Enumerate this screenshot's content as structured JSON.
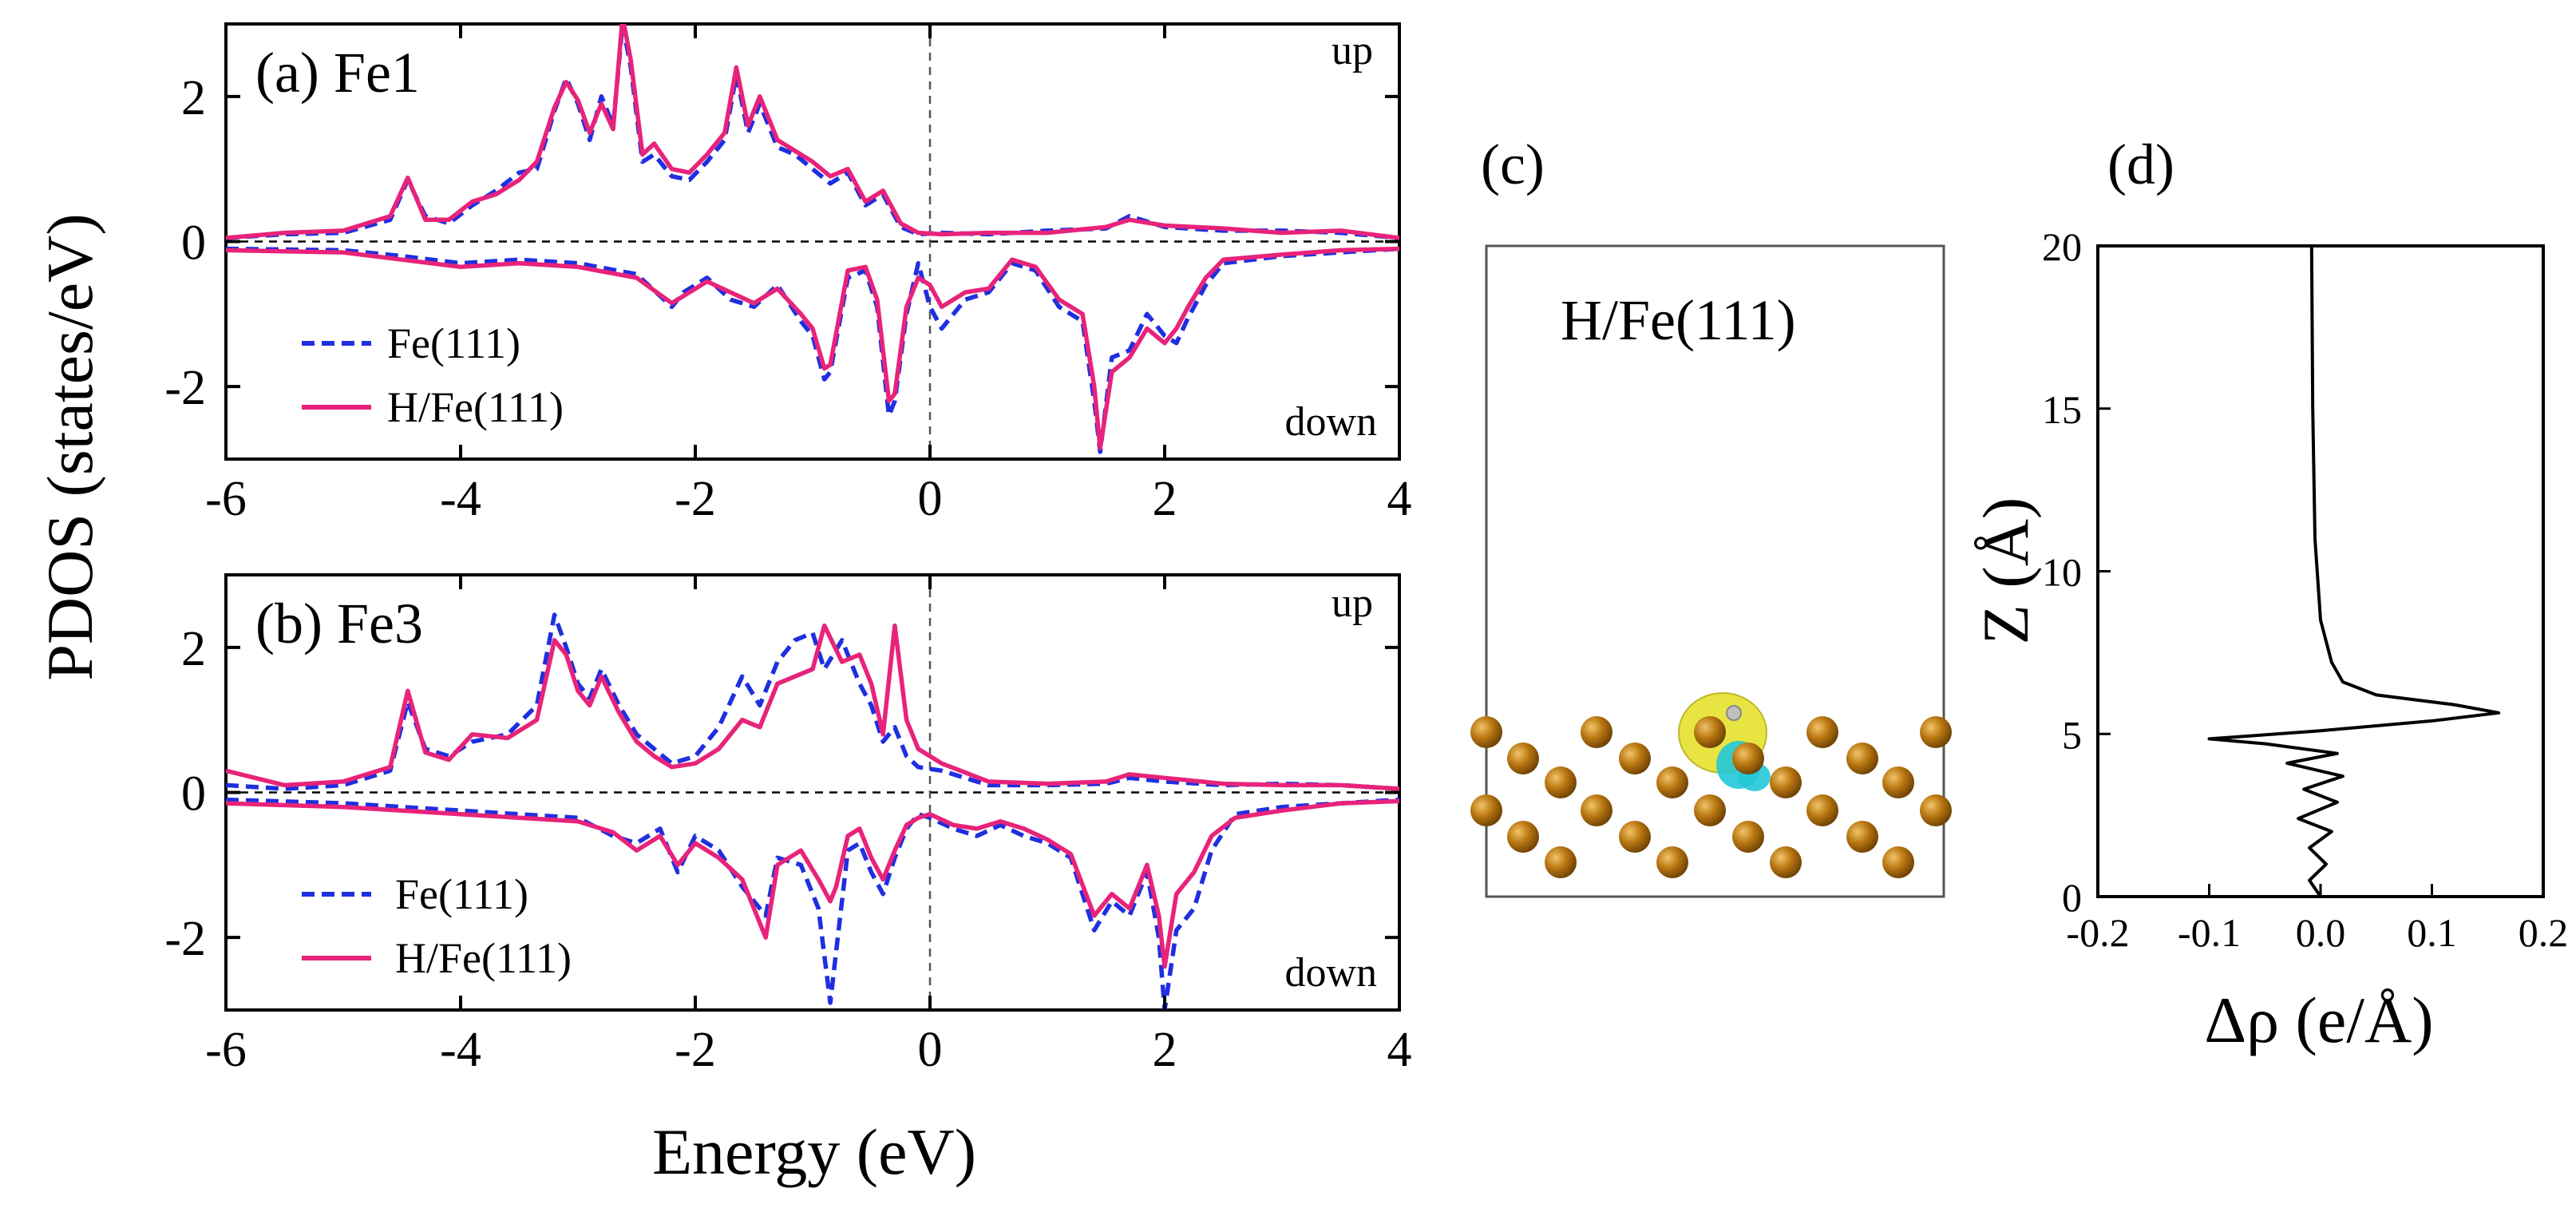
{
  "colors": {
    "fe111": "#1f2fe0",
    "hfe111": "#e8237a",
    "axis": "#000000",
    "atom": "#b8760f",
    "iso_pos": "#e6e22e",
    "iso_neg": "#22c8d8"
  },
  "shared_labels": {
    "ylabel": "PDOS (states/eV)",
    "xlabel": "Energy (eV)"
  },
  "panel_c": {
    "label": "(c)",
    "title": "H/Fe(111)"
  },
  "chart_data": [
    {
      "type": "line",
      "id": "a",
      "title": "(a) Fe1",
      "spin_labels": {
        "up": "up",
        "down": "down"
      },
      "xlim": [
        -6,
        4
      ],
      "ylim": [
        -3,
        3
      ],
      "xticks": [
        -6,
        -4,
        -2,
        0,
        2,
        4
      ],
      "yticks": [
        -2,
        0,
        2
      ],
      "xtick_labels": [
        "-6",
        "-4",
        "-2",
        "0",
        "2",
        "4"
      ],
      "ytick_labels": [
        "-2",
        "0",
        "2"
      ],
      "legend": [
        "Fe(111)",
        "H/Fe(111)"
      ],
      "series": [
        {
          "name": "Fe(111) up",
          "style": "dashed",
          "color_key": "fe111",
          "x": [
            -6,
            -5.5,
            -5,
            -4.6,
            -4.45,
            -4.3,
            -4.1,
            -3.9,
            -3.7,
            -3.5,
            -3.35,
            -3.2,
            -3.1,
            -3.0,
            -2.9,
            -2.8,
            -2.7,
            -2.62,
            -2.55,
            -2.45,
            -2.35,
            -2.2,
            -2.05,
            -1.9,
            -1.75,
            -1.65,
            -1.55,
            -1.45,
            -1.3,
            -1.15,
            -1.0,
            -0.85,
            -0.7,
            -0.55,
            -0.4,
            -0.25,
            -0.1,
            0.1,
            0.5,
            1.0,
            1.5,
            1.7,
            2.0,
            2.5,
            3.0,
            3.5,
            4.0
          ],
          "y": [
            0.05,
            0.1,
            0.12,
            0.3,
            0.85,
            0.35,
            0.25,
            0.5,
            0.7,
            0.95,
            1.0,
            1.8,
            2.25,
            1.9,
            1.4,
            2.0,
            1.6,
            3.0,
            2.4,
            1.1,
            1.2,
            0.9,
            0.85,
            1.1,
            1.4,
            2.3,
            1.5,
            1.9,
            1.3,
            1.2,
            1.0,
            0.8,
            0.95,
            0.5,
            0.65,
            0.2,
            0.1,
            0.12,
            0.1,
            0.15,
            0.18,
            0.35,
            0.2,
            0.15,
            0.15,
            0.12,
            0.05
          ]
        },
        {
          "name": "H/Fe(111) up",
          "style": "solid",
          "color_key": "hfe111",
          "x": [
            -6,
            -5.5,
            -5,
            -4.6,
            -4.45,
            -4.3,
            -4.1,
            -3.9,
            -3.7,
            -3.5,
            -3.35,
            -3.2,
            -3.1,
            -3.0,
            -2.9,
            -2.8,
            -2.7,
            -2.62,
            -2.55,
            -2.45,
            -2.35,
            -2.2,
            -2.05,
            -1.9,
            -1.75,
            -1.65,
            -1.55,
            -1.45,
            -1.3,
            -1.15,
            -1.0,
            -0.85,
            -0.7,
            -0.55,
            -0.4,
            -0.25,
            -0.1,
            0.1,
            0.5,
            1.0,
            1.5,
            1.7,
            2.0,
            2.5,
            3.0,
            3.5,
            4.0
          ],
          "y": [
            0.05,
            0.12,
            0.15,
            0.35,
            0.88,
            0.3,
            0.3,
            0.55,
            0.65,
            0.85,
            1.1,
            1.85,
            2.2,
            1.95,
            1.5,
            1.9,
            1.55,
            3.1,
            2.5,
            1.2,
            1.35,
            1.0,
            0.95,
            1.2,
            1.5,
            2.4,
            1.6,
            2.0,
            1.4,
            1.25,
            1.1,
            0.9,
            1.0,
            0.55,
            0.7,
            0.25,
            0.12,
            0.1,
            0.12,
            0.12,
            0.2,
            0.3,
            0.22,
            0.18,
            0.12,
            0.15,
            0.05
          ]
        },
        {
          "name": "Fe(111) down",
          "style": "dashed",
          "color_key": "fe111",
          "x": [
            -6,
            -5,
            -4.5,
            -4.0,
            -3.5,
            -3.0,
            -2.5,
            -2.2,
            -2.1,
            -1.9,
            -1.7,
            -1.5,
            -1.3,
            -1.1,
            -1.0,
            -0.9,
            -0.85,
            -0.7,
            -0.55,
            -0.45,
            -0.35,
            -0.3,
            -0.2,
            -0.1,
            0.0,
            0.1,
            0.3,
            0.5,
            0.7,
            0.9,
            1.1,
            1.3,
            1.4,
            1.45,
            1.55,
            1.7,
            1.85,
            2.0,
            2.1,
            2.2,
            2.35,
            2.5,
            3.0,
            3.5,
            4.0
          ],
          "y": [
            -0.1,
            -0.12,
            -0.2,
            -0.3,
            -0.25,
            -0.3,
            -0.45,
            -0.9,
            -0.7,
            -0.5,
            -0.8,
            -0.9,
            -0.6,
            -1.1,
            -1.3,
            -1.9,
            -1.8,
            -0.5,
            -0.4,
            -0.9,
            -2.4,
            -2.2,
            -1.0,
            -0.3,
            -0.9,
            -1.2,
            -0.8,
            -0.7,
            -0.3,
            -0.4,
            -0.9,
            -1.1,
            -2.2,
            -2.9,
            -1.6,
            -1.5,
            -1.0,
            -1.3,
            -1.4,
            -1.05,
            -0.6,
            -0.3,
            -0.2,
            -0.15,
            -0.1
          ]
        },
        {
          "name": "H/Fe(111) down",
          "style": "solid",
          "color_key": "hfe111",
          "x": [
            -6,
            -5,
            -4.5,
            -4.0,
            -3.5,
            -3.0,
            -2.5,
            -2.2,
            -2.1,
            -1.9,
            -1.7,
            -1.5,
            -1.3,
            -1.1,
            -1.0,
            -0.9,
            -0.85,
            -0.7,
            -0.55,
            -0.45,
            -0.35,
            -0.3,
            -0.2,
            -0.1,
            0.0,
            0.1,
            0.3,
            0.5,
            0.7,
            0.9,
            1.1,
            1.3,
            1.4,
            1.45,
            1.55,
            1.7,
            1.85,
            2.0,
            2.1,
            2.2,
            2.35,
            2.5,
            3.0,
            3.5,
            4.0
          ],
          "y": [
            -0.12,
            -0.15,
            -0.25,
            -0.35,
            -0.3,
            -0.35,
            -0.5,
            -0.85,
            -0.75,
            -0.55,
            -0.7,
            -0.85,
            -0.65,
            -1.0,
            -1.2,
            -1.75,
            -1.7,
            -0.4,
            -0.35,
            -0.8,
            -2.2,
            -2.1,
            -0.9,
            -0.5,
            -0.6,
            -0.9,
            -0.7,
            -0.65,
            -0.25,
            -0.35,
            -0.8,
            -1.0,
            -2.0,
            -2.85,
            -1.8,
            -1.6,
            -1.2,
            -1.4,
            -1.2,
            -0.9,
            -0.5,
            -0.25,
            -0.18,
            -0.12,
            -0.1
          ]
        }
      ]
    },
    {
      "type": "line",
      "id": "b",
      "title": "(b) Fe3",
      "spin_labels": {
        "up": "up",
        "down": "down"
      },
      "xlim": [
        -6,
        4
      ],
      "ylim": [
        -3,
        3
      ],
      "xticks": [
        -6,
        -4,
        -2,
        0,
        2,
        4
      ],
      "yticks": [
        -2,
        0,
        2
      ],
      "xtick_labels": [
        "-6",
        "-4",
        "-2",
        "0",
        "2",
        "4"
      ],
      "ytick_labels": [
        "-2",
        "0",
        "2"
      ],
      "legend": [
        "Fe(111)",
        "H/Fe(111)"
      ],
      "series": [
        {
          "name": "Fe(111) up",
          "style": "dashed",
          "color_key": "fe111",
          "x": [
            -6,
            -5.5,
            -5,
            -4.6,
            -4.45,
            -4.3,
            -4.1,
            -3.9,
            -3.6,
            -3.35,
            -3.2,
            -3.1,
            -3.0,
            -2.9,
            -2.8,
            -2.65,
            -2.5,
            -2.35,
            -2.2,
            -2.0,
            -1.8,
            -1.6,
            -1.45,
            -1.3,
            -1.15,
            -1.0,
            -0.9,
            -0.75,
            -0.6,
            -0.5,
            -0.4,
            -0.3,
            -0.2,
            -0.1,
            0.1,
            0.5,
            1.0,
            1.5,
            1.7,
            2.0,
            2.5,
            3.0,
            3.5,
            4.0
          ],
          "y": [
            0.1,
            0.05,
            0.1,
            0.3,
            1.25,
            0.6,
            0.5,
            0.7,
            0.8,
            1.2,
            2.45,
            2.0,
            1.5,
            1.3,
            1.7,
            1.2,
            0.8,
            0.6,
            0.4,
            0.5,
            0.9,
            1.6,
            1.2,
            1.8,
            2.1,
            2.2,
            1.7,
            2.1,
            1.5,
            1.2,
            0.7,
            0.9,
            0.5,
            0.35,
            0.3,
            0.1,
            0.1,
            0.12,
            0.2,
            0.15,
            0.1,
            0.12,
            0.1,
            0.05
          ]
        },
        {
          "name": "H/Fe(111) up",
          "style": "solid",
          "color_key": "hfe111",
          "x": [
            -6,
            -5.5,
            -5,
            -4.6,
            -4.45,
            -4.3,
            -4.1,
            -3.9,
            -3.6,
            -3.35,
            -3.2,
            -3.1,
            -3.0,
            -2.9,
            -2.8,
            -2.65,
            -2.5,
            -2.35,
            -2.2,
            -2.0,
            -1.8,
            -1.6,
            -1.45,
            -1.3,
            -1.15,
            -1.0,
            -0.9,
            -0.75,
            -0.6,
            -0.5,
            -0.4,
            -0.3,
            -0.2,
            -0.1,
            0.1,
            0.5,
            1.0,
            1.5,
            1.7,
            2.0,
            2.5,
            3.0,
            3.5,
            4.0
          ],
          "y": [
            0.3,
            0.1,
            0.15,
            0.35,
            1.4,
            0.55,
            0.45,
            0.8,
            0.75,
            1.0,
            2.1,
            1.9,
            1.4,
            1.2,
            1.6,
            1.1,
            0.7,
            0.5,
            0.35,
            0.4,
            0.6,
            1.0,
            0.9,
            1.5,
            1.6,
            1.7,
            2.3,
            1.8,
            1.9,
            1.5,
            0.8,
            2.3,
            1.0,
            0.6,
            0.4,
            0.15,
            0.12,
            0.15,
            0.25,
            0.2,
            0.12,
            0.1,
            0.1,
            0.05
          ]
        },
        {
          "name": "Fe(111) down",
          "style": "dashed",
          "color_key": "fe111",
          "x": [
            -6,
            -5,
            -4.5,
            -4.0,
            -3.5,
            -3.0,
            -2.7,
            -2.5,
            -2.3,
            -2.15,
            -2.0,
            -1.8,
            -1.6,
            -1.4,
            -1.3,
            -1.1,
            -0.95,
            -0.85,
            -0.8,
            -0.7,
            -0.6,
            -0.5,
            -0.4,
            -0.3,
            -0.2,
            -0.1,
            0.0,
            0.2,
            0.4,
            0.6,
            0.8,
            1.0,
            1.2,
            1.4,
            1.55,
            1.7,
            1.85,
            1.95,
            2.0,
            2.1,
            2.25,
            2.4,
            2.6,
            3.0,
            3.5,
            4.0
          ],
          "y": [
            -0.1,
            -0.15,
            -0.2,
            -0.25,
            -0.3,
            -0.35,
            -0.6,
            -0.7,
            -0.5,
            -1.1,
            -0.6,
            -0.8,
            -1.3,
            -1.7,
            -0.9,
            -1.0,
            -1.6,
            -2.9,
            -2.2,
            -0.8,
            -0.7,
            -1.1,
            -1.4,
            -0.9,
            -0.5,
            -0.3,
            -0.35,
            -0.5,
            -0.6,
            -0.45,
            -0.6,
            -0.7,
            -0.9,
            -1.9,
            -1.5,
            -1.7,
            -1.1,
            -2.0,
            -3.0,
            -1.9,
            -1.6,
            -0.8,
            -0.3,
            -0.2,
            -0.15,
            -0.1
          ]
        },
        {
          "name": "H/Fe(111) down",
          "style": "solid",
          "color_key": "hfe111",
          "x": [
            -6,
            -5,
            -4.5,
            -4.0,
            -3.5,
            -3.0,
            -2.7,
            -2.5,
            -2.3,
            -2.15,
            -2.0,
            -1.8,
            -1.6,
            -1.4,
            -1.3,
            -1.1,
            -0.95,
            -0.85,
            -0.8,
            -0.7,
            -0.6,
            -0.5,
            -0.4,
            -0.3,
            -0.2,
            -0.1,
            0.0,
            0.2,
            0.4,
            0.6,
            0.8,
            1.0,
            1.2,
            1.4,
            1.55,
            1.7,
            1.85,
            1.95,
            2.0,
            2.1,
            2.25,
            2.4,
            2.6,
            3.0,
            3.5,
            4.0
          ],
          "y": [
            -0.15,
            -0.2,
            -0.25,
            -0.3,
            -0.35,
            -0.4,
            -0.55,
            -0.8,
            -0.6,
            -1.0,
            -0.7,
            -0.9,
            -1.2,
            -2.0,
            -1.0,
            -0.8,
            -1.2,
            -1.5,
            -1.3,
            -0.6,
            -0.5,
            -0.9,
            -1.2,
            -0.8,
            -0.45,
            -0.35,
            -0.3,
            -0.45,
            -0.5,
            -0.4,
            -0.5,
            -0.65,
            -0.85,
            -1.7,
            -1.4,
            -1.6,
            -1.0,
            -1.7,
            -2.4,
            -1.4,
            -1.1,
            -0.6,
            -0.35,
            -0.25,
            -0.15,
            -0.12
          ]
        }
      ]
    },
    {
      "type": "line",
      "id": "d",
      "title": "(d)",
      "xlabel": "Δρ (e/Å)",
      "ylabel": "Z (Å)",
      "xlim": [
        -0.2,
        0.2
      ],
      "ylim": [
        0,
        20
      ],
      "xticks": [
        -0.2,
        -0.1,
        0.0,
        0.1,
        0.2
      ],
      "yticks": [
        0,
        5,
        10,
        15,
        20
      ],
      "xtick_labels": [
        "-0.2",
        "-0.1",
        "0.0",
        "0.1",
        "0.2"
      ],
      "ytick_labels": [
        "0",
        "5",
        "10",
        "15",
        "20"
      ],
      "series": [
        {
          "name": "charge difference",
          "color_key": "axis",
          "x": [
            0.0,
            -0.01,
            0.005,
            -0.01,
            0.01,
            -0.02,
            0.015,
            -0.015,
            0.02,
            -0.03,
            0.015,
            -0.05,
            -0.1,
            0.0,
            0.1,
            0.16,
            0.12,
            0.05,
            0.02,
            0.01,
            0.0,
            -0.005,
            -0.007,
            -0.008
          ],
          "y": [
            0.0,
            0.5,
            1.0,
            1.5,
            2.0,
            2.4,
            2.9,
            3.3,
            3.7,
            4.1,
            4.4,
            4.7,
            4.85,
            5.1,
            5.4,
            5.65,
            5.9,
            6.2,
            6.6,
            7.2,
            8.5,
            11,
            15,
            20
          ]
        }
      ]
    }
  ]
}
